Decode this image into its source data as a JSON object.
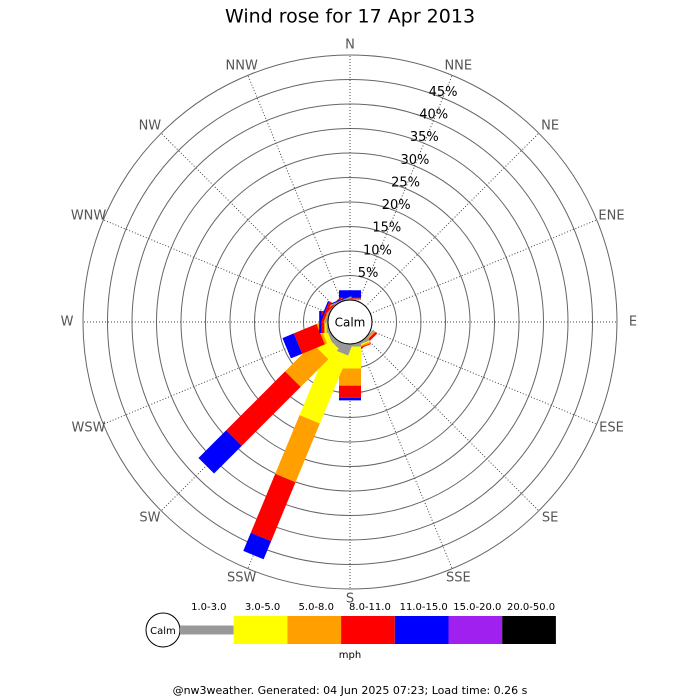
{
  "chart_data": {
    "type": "windrose",
    "title": "Wind rose for 17 Apr 2013",
    "calm_label": "Calm",
    "units": "mph",
    "footer": "@nw3weather. Generated: 04 Jun 2025 07:23; Load time: 0.26 s",
    "directions": [
      "N",
      "NNE",
      "NE",
      "ENE",
      "E",
      "ESE",
      "SE",
      "SSE",
      "S",
      "SSW",
      "SW",
      "WSW",
      "W",
      "WNW",
      "NW",
      "NNW"
    ],
    "ylim": [
      0,
      50
    ],
    "yticks": [
      {
        "value": 5,
        "label": "5%"
      },
      {
        "value": 10,
        "label": "10%"
      },
      {
        "value": 15,
        "label": "15%"
      },
      {
        "value": 20,
        "label": "20%"
      },
      {
        "value": 25,
        "label": "25%"
      },
      {
        "value": 30,
        "label": "30%"
      },
      {
        "value": 35,
        "label": "35%"
      },
      {
        "value": 40,
        "label": "40%"
      },
      {
        "value": 45,
        "label": "45%"
      }
    ],
    "series": [
      {
        "name": "1.0-3.0",
        "color": "#999999",
        "values": [
          0.3,
          0,
          0,
          0,
          0,
          0,
          0.3,
          0.5,
          0.5,
          2,
          1,
          0.5,
          0.3,
          0.3,
          0.2,
          0.3
        ]
      },
      {
        "name": "3.0-5.0",
        "color": "#ffff00",
        "values": [
          0,
          0,
          0,
          0,
          0,
          0,
          0,
          0.3,
          4.5,
          15,
          3,
          1,
          0.3,
          0,
          0,
          0
        ]
      },
      {
        "name": "5.0-8.0",
        "color": "#ffa000",
        "values": [
          0,
          0,
          0,
          0,
          0,
          0,
          0.3,
          0.3,
          3.5,
          13,
          8,
          0.5,
          0.2,
          0.2,
          0,
          0
        ]
      },
      {
        "name": "8.0-11.0",
        "color": "#ff0000",
        "values": [
          0.2,
          0,
          0,
          0,
          0,
          0,
          0.5,
          0.2,
          2.5,
          13,
          17,
          5,
          0.5,
          0.5,
          0.3,
          0
        ]
      },
      {
        "name": "11.0-15.0",
        "color": "#0000ff",
        "values": [
          1.5,
          0,
          0,
          0,
          0,
          0,
          0,
          0,
          0.5,
          4,
          8,
          2.5,
          0.5,
          0.3,
          0,
          0.2
        ]
      },
      {
        "name": "15.0-20.0",
        "color": "#a020f0",
        "values": [
          0,
          0,
          0,
          0,
          0,
          0,
          0,
          0,
          0,
          0,
          0,
          0,
          0,
          0,
          0,
          0
        ]
      },
      {
        "name": "20.0-50.0",
        "color": "#000000",
        "values": [
          0,
          0,
          0,
          0,
          0,
          0,
          0,
          0,
          0,
          0,
          0,
          0,
          0,
          0,
          0,
          0
        ]
      }
    ]
  }
}
